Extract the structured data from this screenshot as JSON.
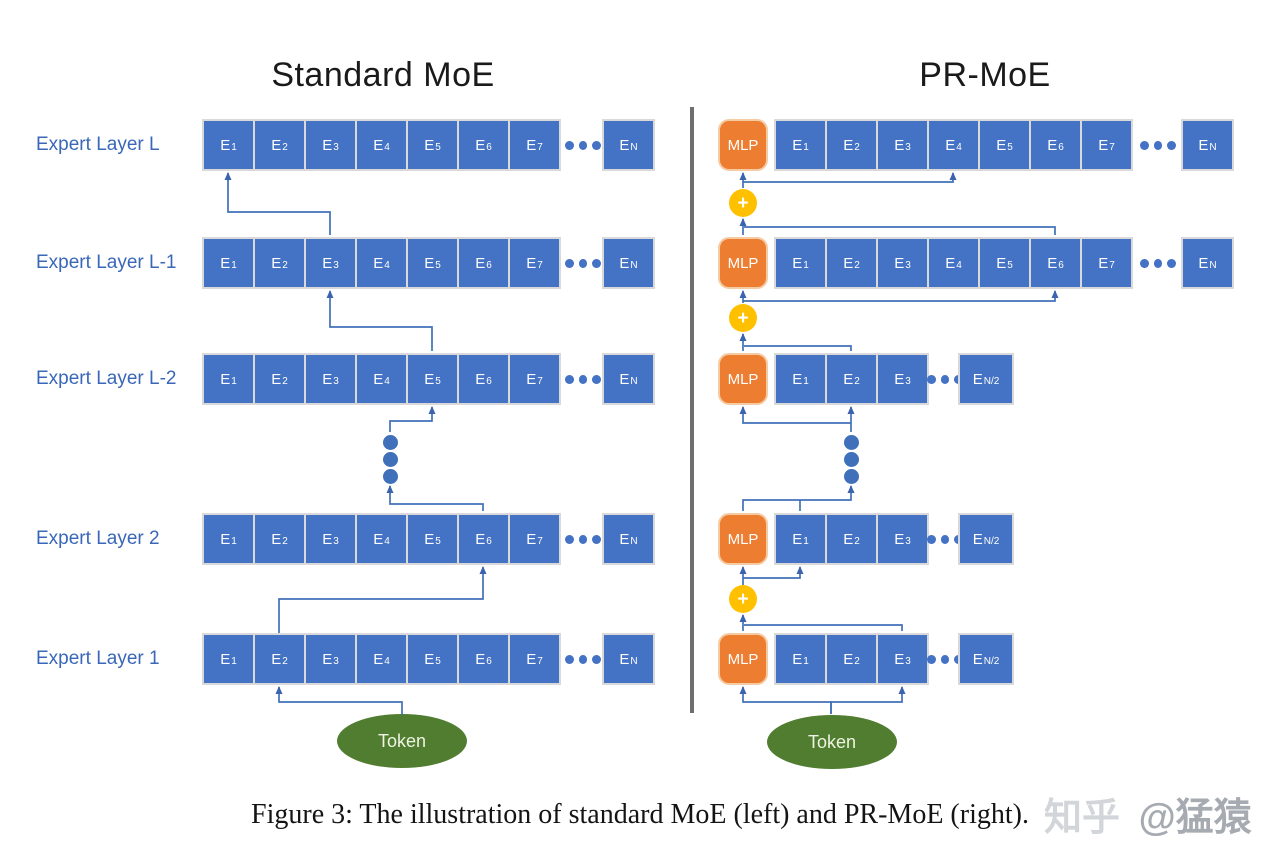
{
  "titles": {
    "left": "Standard MoE",
    "right": "PR-MoE"
  },
  "left_panel": {
    "row_labels": [
      "Expert Layer L",
      "Expert Layer L-1",
      "Expert Layer L-2",
      "Expert Layer 2",
      "Expert Layer 1"
    ],
    "rows": [
      {
        "base": "E",
        "subs": [
          "1",
          "2",
          "3",
          "4",
          "5",
          "6",
          "7"
        ],
        "ellipsis": "•••",
        "last_sub": "N"
      },
      {
        "base": "E",
        "subs": [
          "1",
          "2",
          "3",
          "4",
          "5",
          "6",
          "7"
        ],
        "ellipsis": "•••",
        "last_sub": "N"
      },
      {
        "base": "E",
        "subs": [
          "1",
          "2",
          "3",
          "4",
          "5",
          "6",
          "7"
        ],
        "ellipsis": "•••",
        "last_sub": "N"
      },
      {
        "base": "E",
        "subs": [
          "1",
          "2",
          "3",
          "4",
          "5",
          "6",
          "7"
        ],
        "ellipsis": "•••",
        "last_sub": "N"
      },
      {
        "base": "E",
        "subs": [
          "1",
          "2",
          "3",
          "4",
          "5",
          "6",
          "7"
        ],
        "ellipsis": "•••",
        "last_sub": "N"
      }
    ],
    "token_label": "Token"
  },
  "right_panel": {
    "mlp_label": "MLP",
    "plus_label": "+",
    "rows": [
      {
        "base": "E",
        "subs": [
          "1",
          "2",
          "3",
          "4",
          "5",
          "6",
          "7"
        ],
        "ellipsis": "•••",
        "last_sub": "N"
      },
      {
        "base": "E",
        "subs": [
          "1",
          "2",
          "3",
          "4",
          "5",
          "6",
          "7"
        ],
        "ellipsis": "•••",
        "last_sub": "N"
      },
      {
        "base": "E",
        "subs": [
          "1",
          "2",
          "3"
        ],
        "ellipsis": "•••",
        "last_sub": "N/2"
      },
      {
        "base": "E",
        "subs": [
          "1",
          "2",
          "3"
        ],
        "ellipsis": "•••",
        "last_sub": "N/2"
      },
      {
        "base": "E",
        "subs": [
          "1",
          "2",
          "3"
        ],
        "ellipsis": "•••",
        "last_sub": "N/2"
      }
    ],
    "token_label": "Token"
  },
  "connections": {
    "left": [
      "Token → E2 (Expert Layer 1)",
      "E2 (Expert Layer 1) → E6 (Expert Layer 2)",
      "E6 (Expert Layer 2) → ⋮",
      "⋮ → E5 (Expert Layer L-2)",
      "E5 (Expert Layer L-2) → E3 (Expert Layer L-1)",
      "E3 (Expert Layer L-1) → E1 (Expert Layer L)"
    ],
    "right": [
      "Token → MLP and E3 (bottom layer)",
      "MLP + E3 → ⊕",
      "⊕ → MLP and E1 (next layer)",
      "MLP + E1 → ⋮",
      "⋮ → MLP and E2 (layer L-2)",
      "MLP + E2 → ⊕",
      "⊕ → MLP and E6 (layer L-1)",
      "MLP + E6 → ⊕",
      "⊕ → MLP and E4 (layer L)"
    ]
  },
  "caption": "Figure 3: The illustration of standard MoE (left) and PR-MoE (right).",
  "watermark": {
    "brand": "知乎",
    "handle": "@猛猿"
  },
  "colors": {
    "expert_blue": "#4472C4",
    "mlp_orange": "#ED7D31",
    "plus_yellow": "#FFC000",
    "token_green": "#507D2F",
    "wire_blue": "#4170BA",
    "label_blue": "#3A67B8",
    "divider_gray": "#6F6F6F"
  }
}
